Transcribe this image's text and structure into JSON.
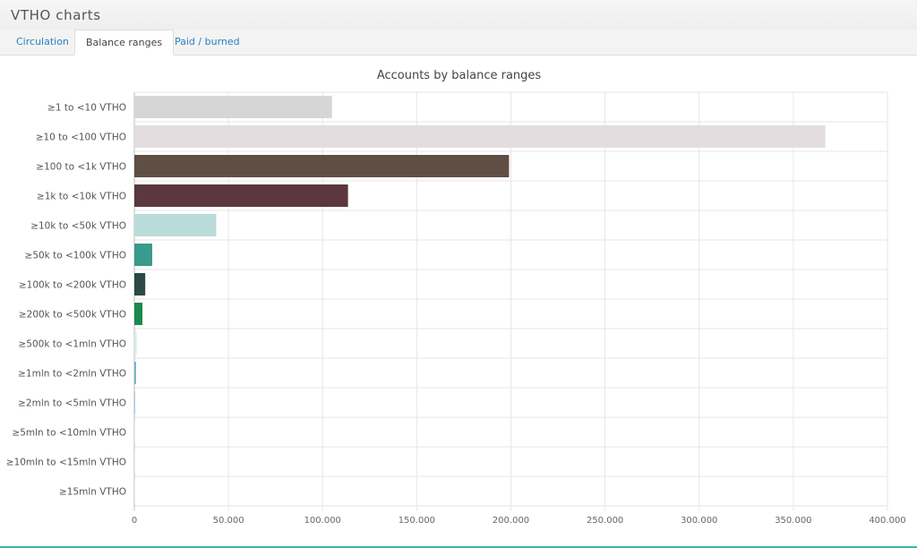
{
  "app": {
    "title": "VTHO charts"
  },
  "tabs": [
    {
      "label": "Circulation",
      "active": false
    },
    {
      "label": "Balance ranges",
      "active": true
    },
    {
      "label": "Paid / burned",
      "active": false
    }
  ],
  "colors": {
    "link": "#2a7fc1",
    "accent_line": "#39b4b0"
  },
  "chart_data": {
    "type": "bar",
    "orientation": "horizontal",
    "title": "Accounts by balance ranges",
    "xlabel": "",
    "ylabel": "",
    "xlim": [
      0,
      400000
    ],
    "x_ticks": [
      0,
      50000,
      100000,
      150000,
      200000,
      250000,
      300000,
      350000,
      400000
    ],
    "x_tick_labels": [
      "0",
      "50.000",
      "100.000",
      "150.000",
      "200.000",
      "250.000",
      "300.000",
      "350.000",
      "400.000"
    ],
    "grid": true,
    "legend": "none",
    "categories": [
      "≥1 to <10 VTHO",
      "≥10 to <100 VTHO",
      "≥100 to <1k VTHO",
      "≥1k to <10k VTHO",
      "≥10k to <50k VTHO",
      "≥50k to <100k VTHO",
      "≥100k to <200k VTHO",
      "≥200k to <500k VTHO",
      "≥500k to <1mln VTHO",
      "≥1mln to <2mln VTHO",
      "≥2mln to <5mln VTHO",
      "≥5mln to <10mln VTHO",
      "≥10mln to <15mln VTHO",
      "≥15mln VTHO"
    ],
    "values": [
      105000,
      367000,
      199000,
      113500,
      43500,
      9500,
      5800,
      4300,
      1200,
      900,
      400,
      100,
      50,
      20
    ],
    "bar_colors": [
      "#d6d6d6",
      "#e3dde0",
      "#5f4e43",
      "#5c3740",
      "#b9dcda",
      "#3a9a8c",
      "#2b4a45",
      "#1c8a4e",
      "#cfeee6",
      "#6fb4c9",
      "#8fbfd8",
      "#cfcfcf",
      "#cfcfcf",
      "#cfcfcf"
    ]
  }
}
